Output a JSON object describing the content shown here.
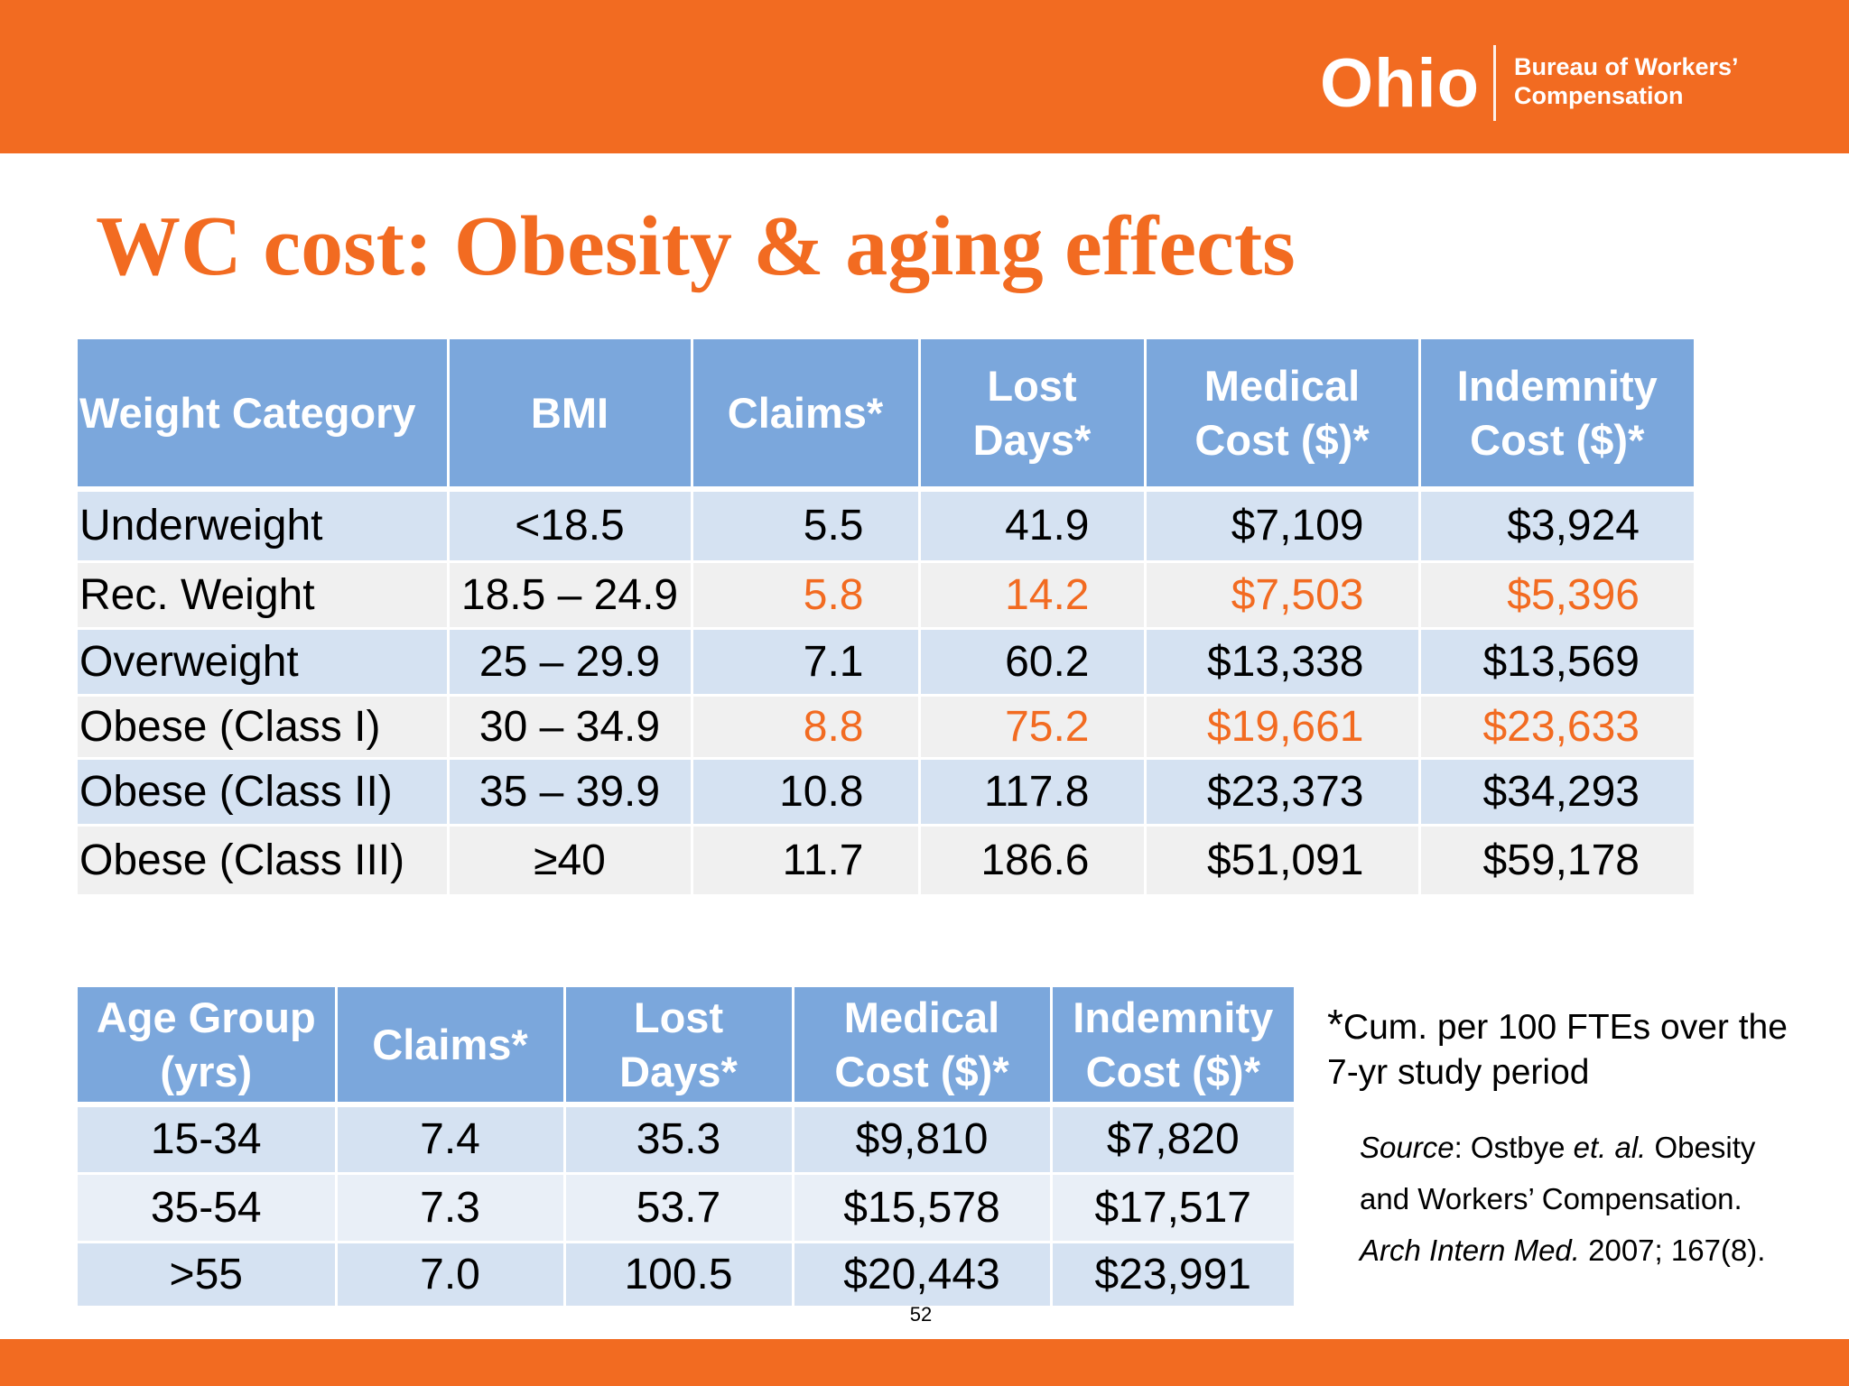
{
  "header": {
    "logo_word": "Ohio",
    "logo_sub_line1": "Bureau of Workers’",
    "logo_sub_line2": "Compensation",
    "brand_color": "#f26b21"
  },
  "title": "WC cost: Obesity & aging effects",
  "weight_table": {
    "headers": [
      "Weight Category",
      "BMI",
      "Claims*",
      "Lost Days*",
      "Medical Cost ($)*",
      "Indemnity Cost ($)*"
    ],
    "header_lines": [
      [
        "Weight Category"
      ],
      [
        "BMI"
      ],
      [
        "Claims*"
      ],
      [
        "Lost",
        "Days*"
      ],
      [
        "Medical",
        "Cost ($)*"
      ],
      [
        "Indemnity",
        "Cost ($)*"
      ]
    ],
    "rows": [
      {
        "category": "Underweight",
        "bmi": "<18.5",
        "claims": "5.5",
        "lost_days": "41.9",
        "medical": "$7,109",
        "indemnity": "$3,924",
        "highlight": false
      },
      {
        "category": "Rec. Weight",
        "bmi": "18.5 – 24.9",
        "claims": "5.8",
        "lost_days": "14.2",
        "medical": "$7,503",
        "indemnity": "$5,396",
        "highlight": true
      },
      {
        "category": "Overweight",
        "bmi": "25 – 29.9",
        "claims": "7.1",
        "lost_days": "60.2",
        "medical": "$13,338",
        "indemnity": "$13,569",
        "highlight": false
      },
      {
        "category": "Obese (Class I)",
        "bmi": "30 – 34.9",
        "claims": "8.8",
        "lost_days": "75.2",
        "medical": "$19,661",
        "indemnity": "$23,633",
        "highlight": true
      },
      {
        "category": "Obese (Class II)",
        "bmi": "35 – 39.9",
        "claims": "10.8",
        "lost_days": "117.8",
        "medical": "$23,373",
        "indemnity": "$34,293",
        "highlight": false
      },
      {
        "category": "Obese (Class III)",
        "bmi": "≥40",
        "claims": "11.7",
        "lost_days": "186.6",
        "medical": "$51,091",
        "indemnity": "$59,178",
        "highlight": false
      }
    ]
  },
  "age_table": {
    "header_lines": [
      [
        "Age Group",
        "(yrs)"
      ],
      [
        "Claims*"
      ],
      [
        "Lost",
        "Days*"
      ],
      [
        "Medical",
        "Cost ($)*"
      ],
      [
        "Indemnity",
        "Cost ($)*"
      ]
    ],
    "rows": [
      {
        "age": "15-34",
        "claims": "7.4",
        "lost_days": "35.3",
        "medical": "$9,810",
        "indemnity": "$7,820"
      },
      {
        "age": "35-54",
        "claims": "7.3",
        "lost_days": "53.7",
        "medical": "$15,578",
        "indemnity": "$17,517"
      },
      {
        "age": ">55",
        "claims": "7.0",
        "lost_days": "100.5",
        "medical": "$20,443",
        "indemnity": "$23,991"
      }
    ]
  },
  "footnote": {
    "star": "*",
    "text": "Cum. per 100 FTEs over the 7-yr study period"
  },
  "source": {
    "label": "Source",
    "sep": ": Ostbye ",
    "etal": "et. al.",
    "body": " Obesity and Workers’ Compensation. ",
    "journal": "Arch Intern Med.",
    "citation": " 2007; 167(8)."
  },
  "page_number": "52"
}
